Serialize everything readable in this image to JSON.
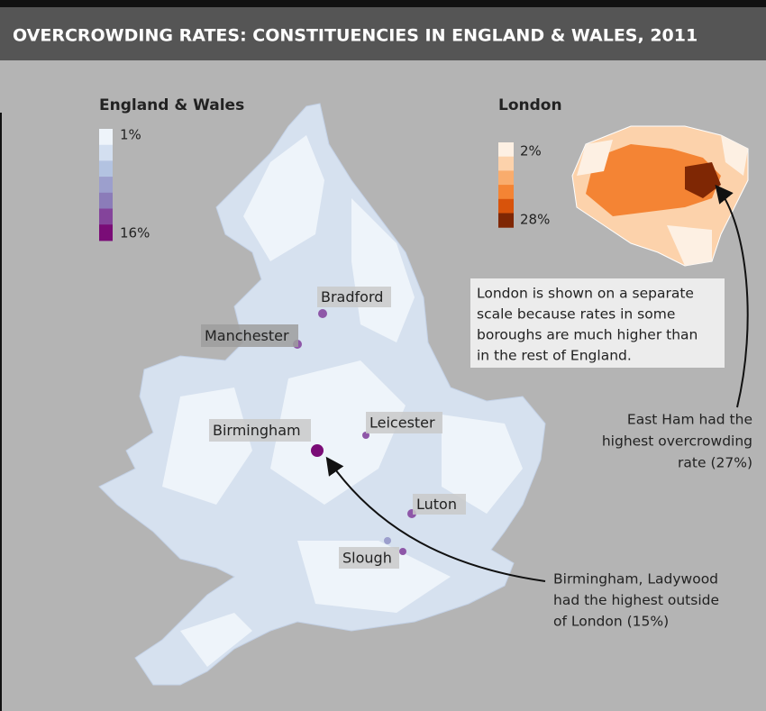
{
  "header": {
    "title": "OVERCROWDING RATES: CONSTITUENCIES IN ENGLAND & WALES, 2011"
  },
  "legend_ew": {
    "title": "England & Wales",
    "min_label": "1%",
    "max_label": "16%",
    "colors": [
      "#eef4fa",
      "#d3dff0",
      "#b3c3e1",
      "#9c9fcd",
      "#8b7cb9",
      "#84449b",
      "#7a0c77"
    ]
  },
  "legend_london": {
    "title": "London",
    "min_label": "2%",
    "max_label": "28%",
    "colors": [
      "#fdf0e3",
      "#fcd2ab",
      "#f9ac6d",
      "#f48434",
      "#d8530b",
      "#7f2704"
    ]
  },
  "cities": [
    "Bradford",
    "Manchester",
    "Birmingham",
    "Leicester",
    "Luton",
    "Slough"
  ],
  "note": [
    "London is shown on a separate",
    "scale because rates in some",
    "boroughs are much higher than",
    "in the rest of England."
  ],
  "east_ham": [
    "East Ham had the",
    "highest overcrowding",
    "rate (27%)"
  ],
  "ladywood": [
    "Birmingham, Ladywood",
    "had the highest outside",
    "of London (15%)"
  ]
}
